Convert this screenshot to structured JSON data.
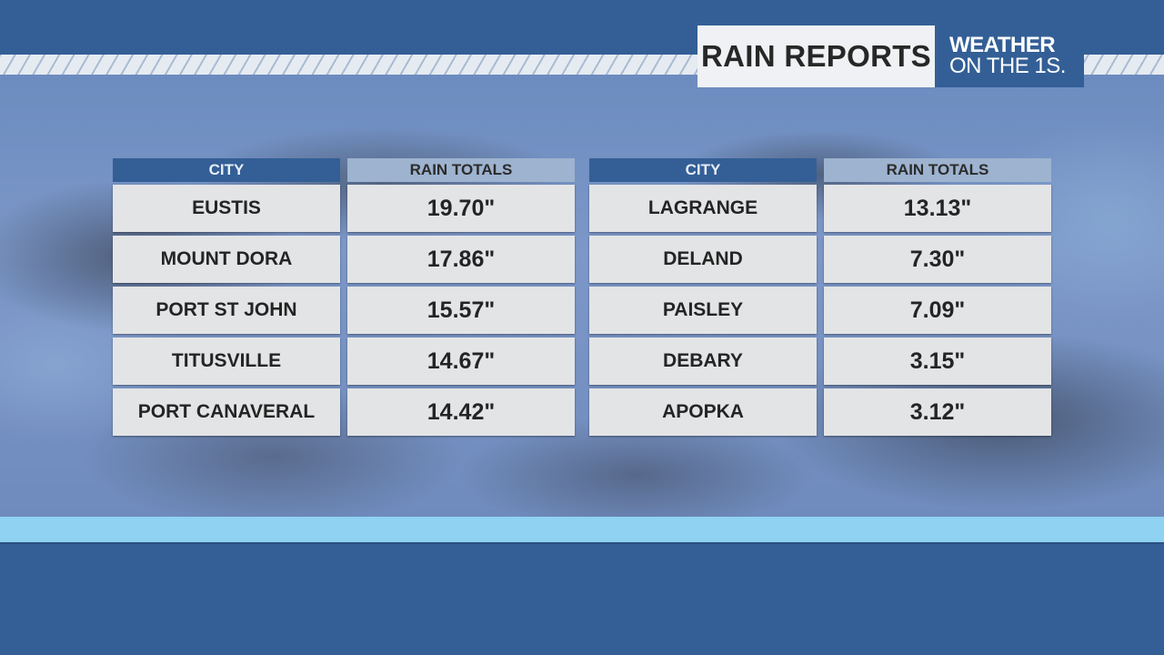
{
  "header": {
    "title": "RAIN REPORTS",
    "logo_line1": "WEATHER",
    "logo_line2": "ON THE 1S."
  },
  "columns": {
    "city": "CITY",
    "rain": "RAIN TOTALS"
  },
  "tables": [
    {
      "rows": [
        {
          "city": "EUSTIS",
          "rain": "19.70\""
        },
        {
          "city": "MOUNT DORA",
          "rain": "17.86\""
        },
        {
          "city": "PORT ST JOHN",
          "rain": "15.57\""
        },
        {
          "city": "TITUSVILLE",
          "rain": "14.67\""
        },
        {
          "city": "PORT CANAVERAL",
          "rain": "14.42\""
        }
      ]
    },
    {
      "rows": [
        {
          "city": "LAGRANGE",
          "rain": "13.13\""
        },
        {
          "city": "DELAND",
          "rain": "7.30\""
        },
        {
          "city": "PAISLEY",
          "rain": "7.09\""
        },
        {
          "city": "DEBARY",
          "rain": "3.15\""
        },
        {
          "city": "APOPKA",
          "rain": "3.12\""
        }
      ]
    }
  ],
  "colors": {
    "brand_blue": "#335f96",
    "header_light": "#9db3cf",
    "cell_bg": "#e3e4e6",
    "accent_band": "#8fd2f2"
  }
}
